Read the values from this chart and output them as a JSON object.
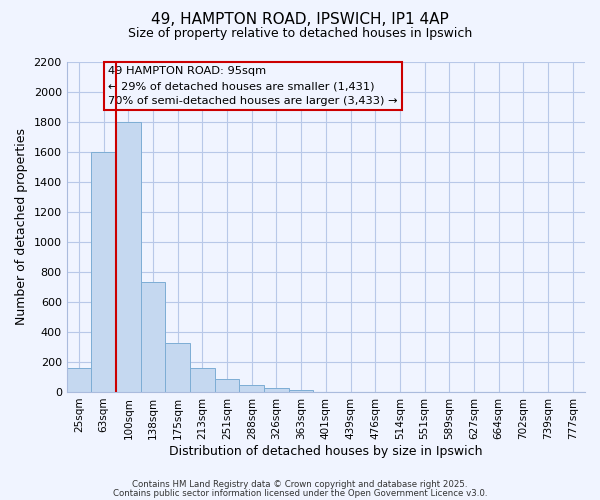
{
  "title_line1": "49, HAMPTON ROAD, IPSWICH, IP1 4AP",
  "title_line2": "Size of property relative to detached houses in Ipswich",
  "xlabel": "Distribution of detached houses by size in Ipswich",
  "ylabel": "Number of detached properties",
  "bin_labels": [
    "25sqm",
    "63sqm",
    "100sqm",
    "138sqm",
    "175sqm",
    "213sqm",
    "251sqm",
    "288sqm",
    "326sqm",
    "363sqm",
    "401sqm",
    "439sqm",
    "476sqm",
    "514sqm",
    "551sqm",
    "589sqm",
    "627sqm",
    "664sqm",
    "702sqm",
    "739sqm",
    "777sqm"
  ],
  "bar_heights": [
    160,
    1600,
    1800,
    730,
    325,
    160,
    85,
    48,
    25,
    12,
    0,
    0,
    0,
    0,
    0,
    0,
    0,
    0,
    0,
    0,
    0
  ],
  "bar_color": "#c5d8f0",
  "bar_edgecolor": "#7dadd4",
  "vline_color": "#cc0000",
  "annotation_line1": "49 HAMPTON ROAD: 95sqm",
  "annotation_line2": "← 29% of detached houses are smaller (1,431)",
  "annotation_line3": "70% of semi-detached houses are larger (3,433) →",
  "box_edgecolor": "#cc0000",
  "ylim": [
    0,
    2200
  ],
  "yticks": [
    0,
    200,
    400,
    600,
    800,
    1000,
    1200,
    1400,
    1600,
    1800,
    2000,
    2200
  ],
  "footer_line1": "Contains HM Land Registry data © Crown copyright and database right 2025.",
  "footer_line2": "Contains public sector information licensed under the Open Government Licence v3.0.",
  "bg_color": "#f0f4ff",
  "grid_color": "#b8c8e8"
}
